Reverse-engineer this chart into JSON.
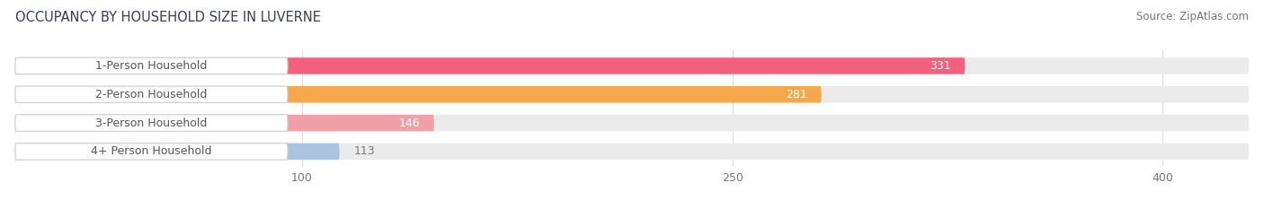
{
  "title": "OCCUPANCY BY HOUSEHOLD SIZE IN LUVERNE",
  "source": "Source: ZipAtlas.com",
  "categories": [
    "1-Person Household",
    "2-Person Household",
    "3-Person Household",
    "4+ Person Household"
  ],
  "values": [
    331,
    281,
    146,
    113
  ],
  "bar_colors": [
    "#f2607d",
    "#f5a84b",
    "#f0a0a8",
    "#a8c4e0"
  ],
  "bar_bg_color": "#ebebeb",
  "xlim": [
    0,
    430
  ],
  "xticks": [
    100,
    250,
    400
  ],
  "title_fontsize": 10.5,
  "source_fontsize": 8.5,
  "label_fontsize": 9,
  "value_fontsize": 9,
  "bar_height": 0.58,
  "background_color": "#ffffff",
  "label_pill_color": "#ffffff",
  "label_text_color": "#555555",
  "value_text_color_inside": "#ffffff",
  "value_text_color_outside": "#777777"
}
